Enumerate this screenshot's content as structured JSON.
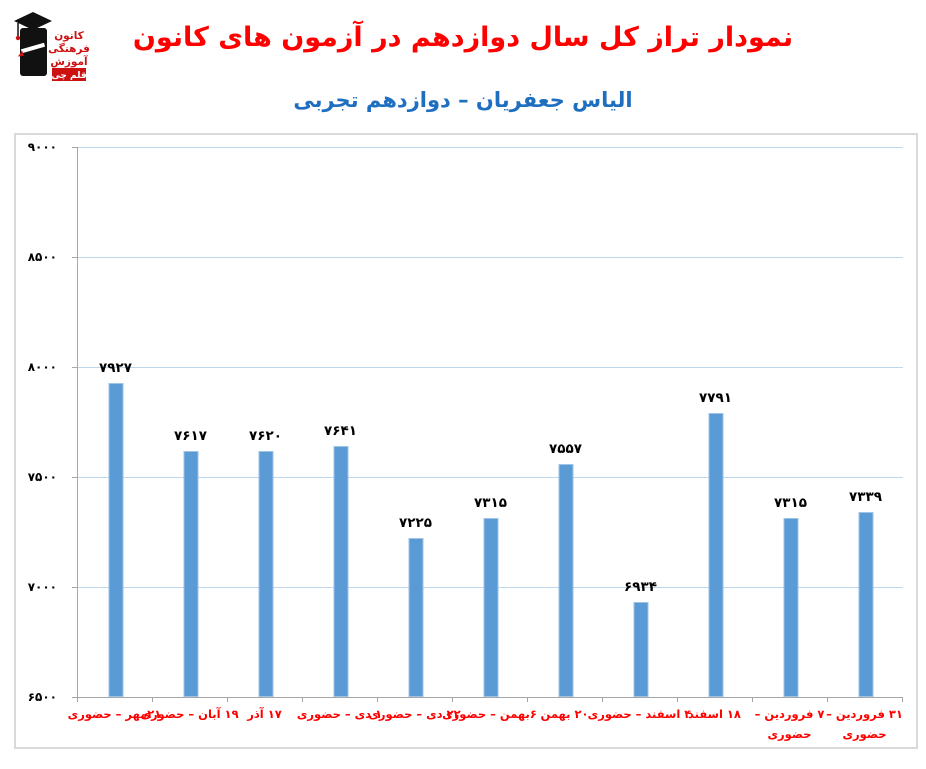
{
  "header": {
    "title": "نمودار تراز کل سال دوازدهم در آزمون های کانون",
    "title_color": "#FF0000",
    "subtitle": "الیاس جعفریان – دوازدهم تجربی",
    "subtitle_color": "#1F6FC0"
  },
  "logo": {
    "lines": [
      "کانون",
      "فرهنگی",
      "آموزش"
    ],
    "badge": "قلم چی",
    "text_color": "#CC1111",
    "figure_color": "#111111"
  },
  "chart_data": {
    "type": "bar",
    "title": "نمودار تراز کل سال دوازدهم در آزمون های کانون",
    "subtitle": "الیاس جعفریان – دوازدهم تجربی",
    "xlabel": "",
    "ylabel": "",
    "categories": [
      "۲۱مهر – حضوری",
      "۱۹ آبان – حضوری",
      "۱۷ آذر",
      "۱ دی – حضوری",
      "۲۲ دی – حضوری",
      "۶بهمن – حضوری",
      "۲۰ بهمن",
      "۴ اسفند – حضوری",
      "۱۸ اسفند",
      "۷ فروردین – حضوری",
      "۳۱ فروردین – حضوری"
    ],
    "category_label_lines": [
      [
        "۲۱مهر – حضوری"
      ],
      [
        "۱۹ آبان – حضوری"
      ],
      [
        "۱۷ آذر"
      ],
      [
        "۱ دی – حضوری"
      ],
      [
        "۲۲ دی – حضوری"
      ],
      [
        "۶بهمن – حضوری"
      ],
      [
        "۲۰ بهمن"
      ],
      [
        "۴ اسفند – حضوری"
      ],
      [
        "۱۸ اسفند"
      ],
      [
        "۷ فروردین –",
        "حضوری"
      ],
      [
        "۳۱ فروردین –",
        "حضوری"
      ]
    ],
    "values": [
      7927,
      7617,
      7620,
      7641,
      7225,
      7315,
      7557,
      6934,
      7791,
      7315,
      7339
    ],
    "value_labels": [
      "۷۹۲۷",
      "۷۶۱۷",
      "۷۶۲۰",
      "۷۶۴۱",
      "۷۲۲۵",
      "۷۳۱۵",
      "۷۵۵۷",
      "۶۹۳۴",
      "۷۷۹۱",
      "۷۳۱۵",
      "۷۳۳۹"
    ],
    "ylim": [
      6500,
      9000
    ],
    "ytick_step": 500,
    "ytick_labels": [
      "۶۵۰۰",
      "۷۰۰۰",
      "۷۵۰۰",
      "۸۰۰۰",
      "۸۵۰۰",
      "۹۰۰۰"
    ],
    "grid": true,
    "legend": "none",
    "bar_color": "#5B9BD5",
    "bar_border_color": "#9DC3E6",
    "gridline_color": "#BDD7EE",
    "axis_color": "#A6A6A6",
    "value_label_color": "#000000",
    "category_label_color": "#FF0000"
  }
}
